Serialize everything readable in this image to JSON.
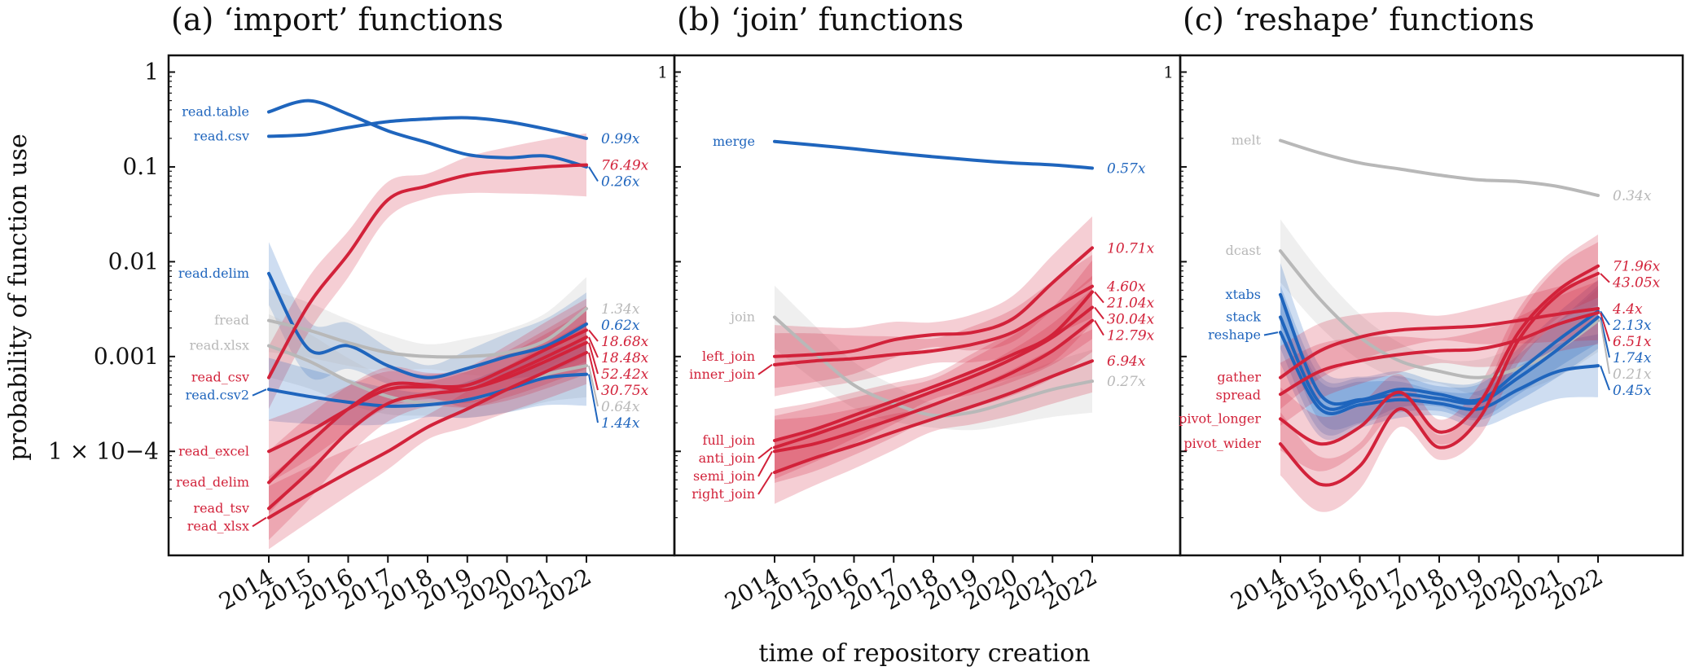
{
  "figure": {
    "xlabel": "time of repository creation",
    "ylabel": "probability of function use",
    "x_ticks": [
      "2014",
      "2015",
      "2016",
      "2017",
      "2018",
      "2019",
      "2020",
      "2021",
      "2022"
    ],
    "y_tick_labels": [
      "1",
      "0.1",
      "0.01",
      "0.001",
      "1 × 10−4"
    ],
    "y_tick_labels_inner": [
      "1"
    ]
  },
  "colors": {
    "red": "#d2223a",
    "blue": "#1f65bd",
    "grey": "#b8b8b8"
  },
  "chart_data": [
    {
      "type": "line",
      "title": "(a) ‘import’ functions",
      "ylim": [
        8e-06,
        1.5
      ],
      "yscale": "log",
      "x_range": [
        2014,
        2022
      ],
      "series": [
        {
          "name": "read.table",
          "color": "blue",
          "band": false,
          "multiplier": "0.26x",
          "x": [
            2014,
            2015,
            2016,
            2017,
            2018,
            2019,
            2020,
            2021,
            2022
          ],
          "values": [
            0.38,
            0.5,
            0.36,
            0.24,
            0.18,
            0.135,
            0.125,
            0.13,
            0.1
          ]
        },
        {
          "name": "read.csv",
          "color": "blue",
          "band": false,
          "multiplier": "0.99x",
          "x": [
            2014,
            2015,
            2016,
            2017,
            2018,
            2019,
            2020,
            2021,
            2022
          ],
          "values": [
            0.21,
            0.22,
            0.26,
            0.3,
            0.32,
            0.33,
            0.3,
            0.25,
            0.2
          ]
        },
        {
          "name": "read.delim",
          "color": "blue",
          "band": true,
          "multiplier": "0.62x",
          "x": [
            2014,
            2015,
            2016,
            2017,
            2018,
            2019,
            2020,
            2021,
            2022
          ],
          "values": [
            0.0075,
            0.0012,
            0.0013,
            0.0008,
            0.0006,
            0.00075,
            0.001,
            0.0013,
            0.0022
          ]
        },
        {
          "name": "fread",
          "color": "grey",
          "band": true,
          "multiplier": "1.34x",
          "x": [
            2014,
            2015,
            2016,
            2017,
            2018,
            2019,
            2020,
            2021,
            2022
          ],
          "values": [
            0.0024,
            0.0019,
            0.0014,
            0.0011,
            0.001,
            0.001,
            0.0011,
            0.0015,
            0.0032
          ]
        },
        {
          "name": "read.xlsx",
          "color": "grey",
          "band": true,
          "multiplier": "0.64x",
          "x": [
            2014,
            2015,
            2016,
            2017,
            2018,
            2019,
            2020,
            2021,
            2022
          ],
          "values": [
            0.0013,
            0.0009,
            0.00055,
            0.00038,
            0.00032,
            0.00035,
            0.00045,
            0.00065,
            0.0008
          ]
        },
        {
          "name": "read_csv",
          "color": "red",
          "band": true,
          "multiplier": "76.49x",
          "x": [
            2014,
            2015,
            2016,
            2017,
            2018,
            2019,
            2020,
            2021,
            2022
          ],
          "values": [
            0.0006,
            0.0035,
            0.012,
            0.045,
            0.063,
            0.082,
            0.092,
            0.1,
            0.105
          ]
        },
        {
          "name": "read.csv2",
          "color": "blue",
          "band": true,
          "multiplier": "1.44x",
          "x": [
            2014,
            2015,
            2016,
            2017,
            2018,
            2019,
            2020,
            2021,
            2022
          ],
          "values": [
            0.00045,
            0.00038,
            0.00033,
            0.0003,
            0.00031,
            0.00035,
            0.00045,
            0.0006,
            0.00065
          ]
        },
        {
          "name": "read_excel",
          "color": "red",
          "band": true,
          "multiplier": "18.68x",
          "x": [
            2014,
            2015,
            2016,
            2017,
            2018,
            2019,
            2020,
            2021,
            2022
          ],
          "values": [
            0.0001,
            0.00016,
            0.00028,
            0.00045,
            0.00048,
            0.0005,
            0.00075,
            0.0012,
            0.0019
          ]
        },
        {
          "name": "read_delim",
          "color": "red",
          "band": true,
          "multiplier": "18.48x",
          "x": [
            2014,
            2015,
            2016,
            2017,
            2018,
            2019,
            2020,
            2021,
            2022
          ],
          "values": [
            4.7e-05,
            0.00012,
            0.00028,
            0.0005,
            0.0005,
            0.00045,
            0.00065,
            0.001,
            0.0016
          ]
        },
        {
          "name": "read_tsv",
          "color": "red",
          "band": true,
          "multiplier": "52.42x",
          "x": [
            2014,
            2015,
            2016,
            2017,
            2018,
            2019,
            2020,
            2021,
            2022
          ],
          "values": [
            2.5e-05,
            6e-05,
            0.00016,
            0.00032,
            0.0004,
            0.00045,
            0.0006,
            0.0009,
            0.0014
          ]
        },
        {
          "name": "read_xlsx",
          "color": "red",
          "band": true,
          "multiplier": "30.75x",
          "x": [
            2014,
            2015,
            2016,
            2017,
            2018,
            2019,
            2020,
            2021,
            2022
          ],
          "values": [
            2e-05,
            3.5e-05,
            6e-05,
            0.0001,
            0.00018,
            0.00028,
            0.00045,
            0.0007,
            0.0011
          ]
        }
      ]
    },
    {
      "type": "line",
      "title": "(b) ‘join’ functions",
      "ylim": [
        8e-06,
        1.5
      ],
      "yscale": "log",
      "x_range": [
        2014,
        2022
      ],
      "series": [
        {
          "name": "merge",
          "color": "blue",
          "band": false,
          "multiplier": "0.57x",
          "x": [
            2014,
            2015,
            2016,
            2017,
            2018,
            2019,
            2020,
            2021,
            2022
          ],
          "values": [
            0.185,
            0.17,
            0.155,
            0.14,
            0.128,
            0.118,
            0.11,
            0.105,
            0.097
          ]
        },
        {
          "name": "join",
          "color": "grey",
          "band": true,
          "multiplier": "0.27x",
          "x": [
            2014,
            2015,
            2016,
            2017,
            2018,
            2019,
            2020,
            2021,
            2022
          ],
          "values": [
            0.0026,
            0.0011,
            0.0005,
            0.00032,
            0.00024,
            0.00026,
            0.00034,
            0.00045,
            0.00055
          ]
        },
        {
          "name": "left_join",
          "color": "red",
          "band": true,
          "multiplier": "10.71x",
          "x": [
            2014,
            2015,
            2016,
            2017,
            2018,
            2019,
            2020,
            2021,
            2022
          ],
          "values": [
            0.001,
            0.00105,
            0.00115,
            0.0015,
            0.0017,
            0.0018,
            0.0025,
            0.006,
            0.014
          ]
        },
        {
          "name": "inner_join",
          "color": "red",
          "band": true,
          "multiplier": "4.60x",
          "x": [
            2014,
            2015,
            2016,
            2017,
            2018,
            2019,
            2020,
            2021,
            2022
          ],
          "values": [
            0.00082,
            0.0009,
            0.00095,
            0.00105,
            0.00115,
            0.00135,
            0.0018,
            0.0032,
            0.0055
          ]
        },
        {
          "name": "full_join",
          "color": "red",
          "band": true,
          "multiplier": "21.04x",
          "x": [
            2014,
            2015,
            2016,
            2017,
            2018,
            2019,
            2020,
            2021,
            2022
          ],
          "values": [
            0.00013,
            0.00017,
            0.00024,
            0.00034,
            0.00048,
            0.0007,
            0.00105,
            0.0017,
            0.0048
          ]
        },
        {
          "name": "anti_join",
          "color": "red",
          "band": true,
          "multiplier": "30.04x",
          "x": [
            2014,
            2015,
            2016,
            2017,
            2018,
            2019,
            2020,
            2021,
            2022
          ],
          "values": [
            0.00011,
            0.00015,
            0.00021,
            0.0003,
            0.00043,
            0.00062,
            0.00095,
            0.0016,
            0.0033
          ]
        },
        {
          "name": "semi_join",
          "color": "red",
          "band": true,
          "multiplier": "12.79x",
          "x": [
            2014,
            2015,
            2016,
            2017,
            2018,
            2019,
            2020,
            2021,
            2022
          ],
          "values": [
            0.0001,
            0.00012,
            0.00016,
            0.00022,
            0.00031,
            0.00045,
            0.00068,
            0.00115,
            0.0024
          ]
        },
        {
          "name": "right_join",
          "color": "red",
          "band": true,
          "multiplier": "6.94x",
          "x": [
            2014,
            2015,
            2016,
            2017,
            2018,
            2019,
            2020,
            2021,
            2022
          ],
          "values": [
            6e-05,
            8.5e-05,
            0.000115,
            0.00016,
            0.00022,
            0.0003,
            0.00042,
            0.00062,
            0.0009
          ]
        }
      ]
    },
    {
      "type": "line",
      "title": "(c) ‘reshape’ functions",
      "ylim": [
        8e-06,
        1.5
      ],
      "yscale": "log",
      "x_range": [
        2014,
        2022
      ],
      "series": [
        {
          "name": "melt",
          "color": "grey",
          "band": false,
          "multiplier": "0.34x",
          "x": [
            2014,
            2015,
            2016,
            2017,
            2018,
            2019,
            2020,
            2021,
            2022
          ],
          "values": [
            0.19,
            0.14,
            0.11,
            0.095,
            0.082,
            0.073,
            0.07,
            0.062,
            0.05
          ]
        },
        {
          "name": "dcast",
          "color": "grey",
          "band": true,
          "multiplier": "0.21x",
          "x": [
            2014,
            2015,
            2016,
            2017,
            2018,
            2019,
            2020,
            2021,
            2022
          ],
          "values": [
            0.013,
            0.004,
            0.0016,
            0.0009,
            0.0007,
            0.0006,
            0.00075,
            0.0012,
            0.0024
          ]
        },
        {
          "name": "xtabs",
          "color": "blue",
          "band": true,
          "multiplier": "2.13x",
          "x": [
            2014,
            2015,
            2016,
            2017,
            2018,
            2019,
            2020,
            2021,
            2022
          ],
          "values": [
            0.0045,
            0.0004,
            0.00035,
            0.00045,
            0.0004,
            0.00035,
            0.0007,
            0.0015,
            0.003
          ]
        },
        {
          "name": "stack",
          "color": "blue",
          "band": true,
          "multiplier": "1.74x",
          "x": [
            2014,
            2015,
            2016,
            2017,
            2018,
            2019,
            2020,
            2021,
            2022
          ],
          "values": [
            0.0026,
            0.00032,
            0.00034,
            0.0004,
            0.00036,
            0.00033,
            0.0006,
            0.0012,
            0.0026
          ]
        },
        {
          "name": "reshape",
          "color": "blue",
          "band": true,
          "multiplier": "0.45x",
          "x": [
            2014,
            2015,
            2016,
            2017,
            2018,
            2019,
            2020,
            2021,
            2022
          ],
          "values": [
            0.0018,
            0.00028,
            0.00031,
            0.00035,
            0.00032,
            0.00028,
            0.00045,
            0.0007,
            0.0008
          ]
        },
        {
          "name": "gather",
          "color": "red",
          "band": true,
          "multiplier": "4.4x",
          "x": [
            2014,
            2015,
            2016,
            2017,
            2018,
            2019,
            2020,
            2021,
            2022
          ],
          "values": [
            0.0006,
            0.00115,
            0.0016,
            0.0019,
            0.002,
            0.0021,
            0.0024,
            0.0028,
            0.0032
          ]
        },
        {
          "name": "spread",
          "color": "red",
          "band": true,
          "multiplier": "6.51x",
          "x": [
            2014,
            2015,
            2016,
            2017,
            2018,
            2019,
            2020,
            2021,
            2022
          ],
          "values": [
            0.0004,
            0.0007,
            0.0009,
            0.00105,
            0.00115,
            0.0012,
            0.0015,
            0.0022,
            0.0029
          ]
        },
        {
          "name": "pivot_longer",
          "color": "red",
          "band": true,
          "multiplier": "71.96x",
          "x": [
            2014,
            2015,
            2016,
            2017,
            2018,
            2019,
            2020,
            2021,
            2022
          ],
          "values": [
            0.00022,
            0.00012,
            0.00018,
            0.00042,
            0.00016,
            0.00032,
            0.0018,
            0.005,
            0.009
          ]
        },
        {
          "name": "pivot_wider",
          "color": "red",
          "band": true,
          "multiplier": "43.05x",
          "x": [
            2014,
            2015,
            2016,
            2017,
            2018,
            2019,
            2020,
            2021,
            2022
          ],
          "values": [
            0.00012,
            4.5e-05,
            7e-05,
            0.00028,
            0.00011,
            0.00022,
            0.0015,
            0.0045,
            0.0075
          ]
        }
      ]
    }
  ]
}
